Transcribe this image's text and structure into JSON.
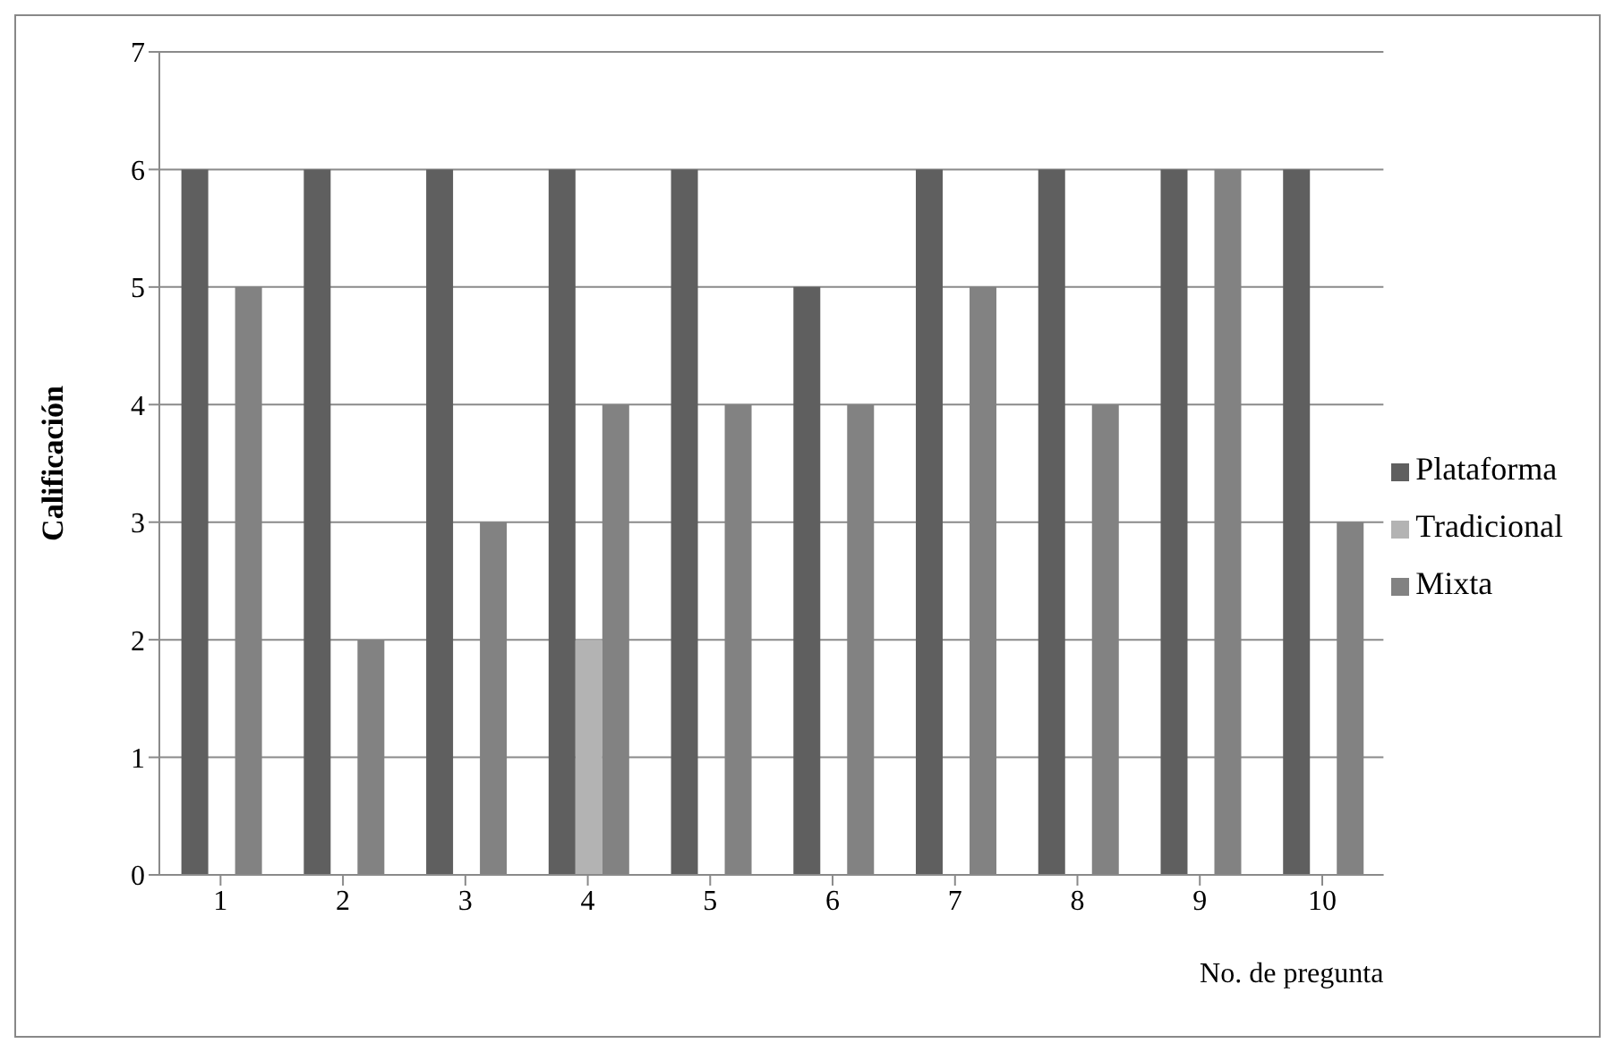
{
  "chart_data": {
    "type": "bar",
    "xlabel": "No. de pregunta",
    "ylabel": "Calificación",
    "categories": [
      "1",
      "2",
      "3",
      "4",
      "5",
      "6",
      "7",
      "8",
      "9",
      "10"
    ],
    "series": [
      {
        "name": "Plataforma",
        "color": "#5f5f5f",
        "values": [
          6,
          6,
          6,
          6,
          6,
          5,
          6,
          6,
          6,
          6
        ]
      },
      {
        "name": "Tradicional",
        "color": "#b3b3b3",
        "values": [
          0,
          0,
          0,
          2,
          0,
          0,
          0,
          0,
          0,
          0
        ]
      },
      {
        "name": "Mixta",
        "color": "#828282",
        "values": [
          5,
          2,
          3,
          4,
          4,
          4,
          5,
          4,
          6,
          3
        ]
      }
    ],
    "ylim": [
      0,
      7
    ],
    "yticks": [
      0,
      1,
      2,
      3,
      4,
      5,
      6,
      7
    ],
    "grid": "y",
    "legend": "right"
  }
}
